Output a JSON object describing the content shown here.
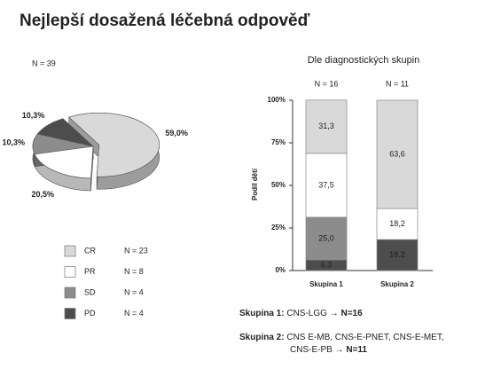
{
  "title": "Nejlepší dosažená léčebná odpověď",
  "chart_data": [
    {
      "type": "pie",
      "subtitle": "N = 39",
      "categories": [
        "CR",
        "PR",
        "SD",
        "PD"
      ],
      "values": [
        59.0,
        20.5,
        10.3,
        10.3
      ],
      "value_labels": [
        "59,0%",
        "20,5%",
        "10,3%",
        "10,3%"
      ],
      "colors": [
        "#d9d9d9",
        "#ffffff",
        "#8c8c8c",
        "#4d4d4d"
      ],
      "counts": [
        23,
        8,
        4,
        4
      ],
      "count_labels": [
        "N = 23",
        "N = 8",
        "N = 4",
        "N = 4"
      ]
    },
    {
      "type": "bar",
      "stacked": true,
      "title": "Dle diagnostických skupin",
      "categories": [
        "Skupina 1",
        "Skupina 2"
      ],
      "category_notes": [
        "N = 16",
        "N = 11"
      ],
      "ylabel": "Podíl dětí",
      "ylim": [
        0,
        100
      ],
      "yticks": [
        {
          "value": 0,
          "label": "0%"
        },
        {
          "value": 25,
          "label": "25%"
        },
        {
          "value": 50,
          "label": "50%"
        },
        {
          "value": 75,
          "label": "75%"
        },
        {
          "value": 100,
          "label": "100%"
        }
      ],
      "grid": false,
      "series": [
        {
          "name": "CR",
          "color": "#d9d9d9",
          "values": [
            31.3,
            63.6
          ],
          "value_labels": [
            "31,3",
            "63,6"
          ]
        },
        {
          "name": "PR",
          "color": "#ffffff",
          "values": [
            37.5,
            18.2
          ],
          "value_labels": [
            "37,5",
            "18,2"
          ]
        },
        {
          "name": "SD",
          "color": "#8c8c8c",
          "values": [
            25.0,
            null
          ],
          "value_labels": [
            "25,0",
            null
          ]
        },
        {
          "name": "PD",
          "color": "#4d4d4d",
          "values": [
            6.3,
            18.2
          ],
          "value_labels": [
            "6,3",
            "18,2"
          ]
        }
      ]
    }
  ],
  "notes": [
    {
      "label": "Skupina 1:",
      "lines": [
        "CNS-LGG → "
      ],
      "total": "N=16"
    },
    {
      "label": "Skupina 2:",
      "lines": [
        "CNS E-MB, CNS-E-PNET, CNS-E-MET,",
        "CNS-E-PB → "
      ],
      "total": "N=11"
    }
  ]
}
